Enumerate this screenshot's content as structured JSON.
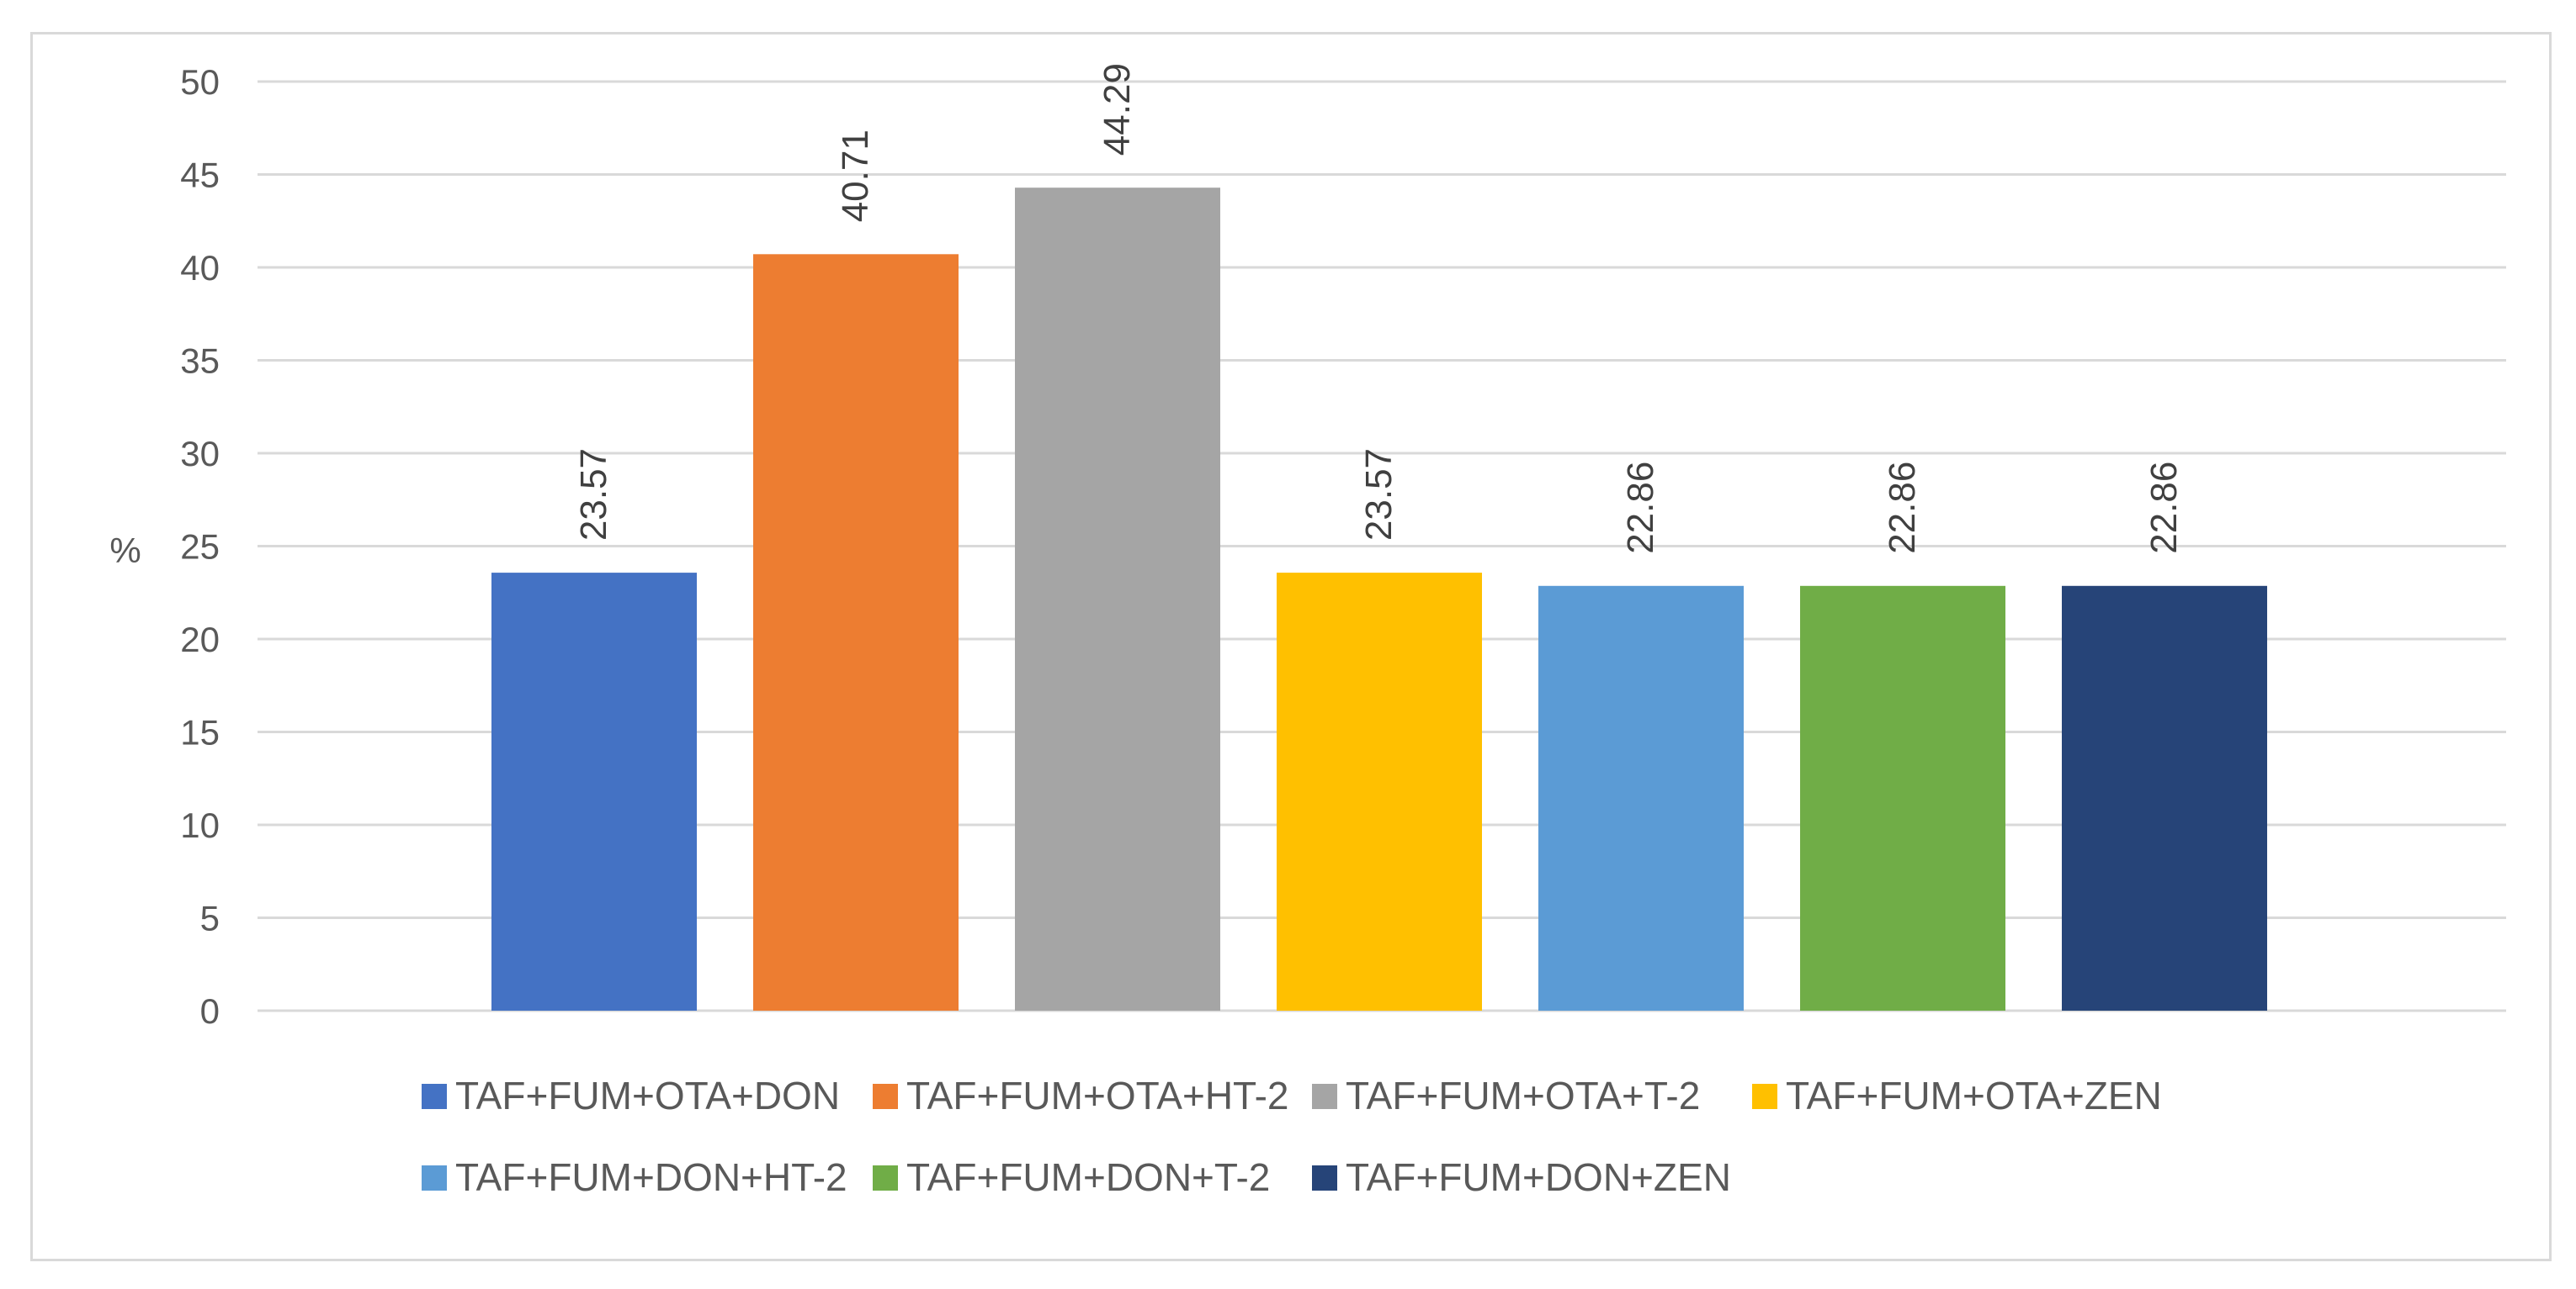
{
  "chart_data": {
    "type": "bar",
    "title": "",
    "xlabel": "",
    "ylabel": "%",
    "ylim": [
      0,
      50
    ],
    "ytick_step": 5,
    "yticks": [
      "0",
      "5",
      "10",
      "15",
      "20",
      "25",
      "30",
      "35",
      "40",
      "45",
      "50"
    ],
    "grid": true,
    "legend_position": "bottom",
    "series": [
      {
        "name": "TAF+FUM+OTA+DON",
        "value": 23.57,
        "label": "23.57",
        "color": "#4472c4"
      },
      {
        "name": "TAF+FUM+OTA+HT-2",
        "value": 40.71,
        "label": "40.71",
        "color": "#ed7d31"
      },
      {
        "name": "TAF+FUM+OTA+T-2",
        "value": 44.29,
        "label": "44.29",
        "color": "#a5a5a5"
      },
      {
        "name": "TAF+FUM+OTA+ZEN",
        "value": 23.57,
        "label": "23.57",
        "color": "#ffc000"
      },
      {
        "name": "TAF+FUM+DON+HT-2",
        "value": 22.86,
        "label": "22.86",
        "color": "#5b9bd5"
      },
      {
        "name": "TAF+FUM+DON+T-2",
        "value": 22.86,
        "label": "22.86",
        "color": "#70ad47"
      },
      {
        "name": "TAF+FUM+DON+ZEN",
        "value": 22.86,
        "label": "22.86",
        "color": "#264478"
      }
    ]
  }
}
